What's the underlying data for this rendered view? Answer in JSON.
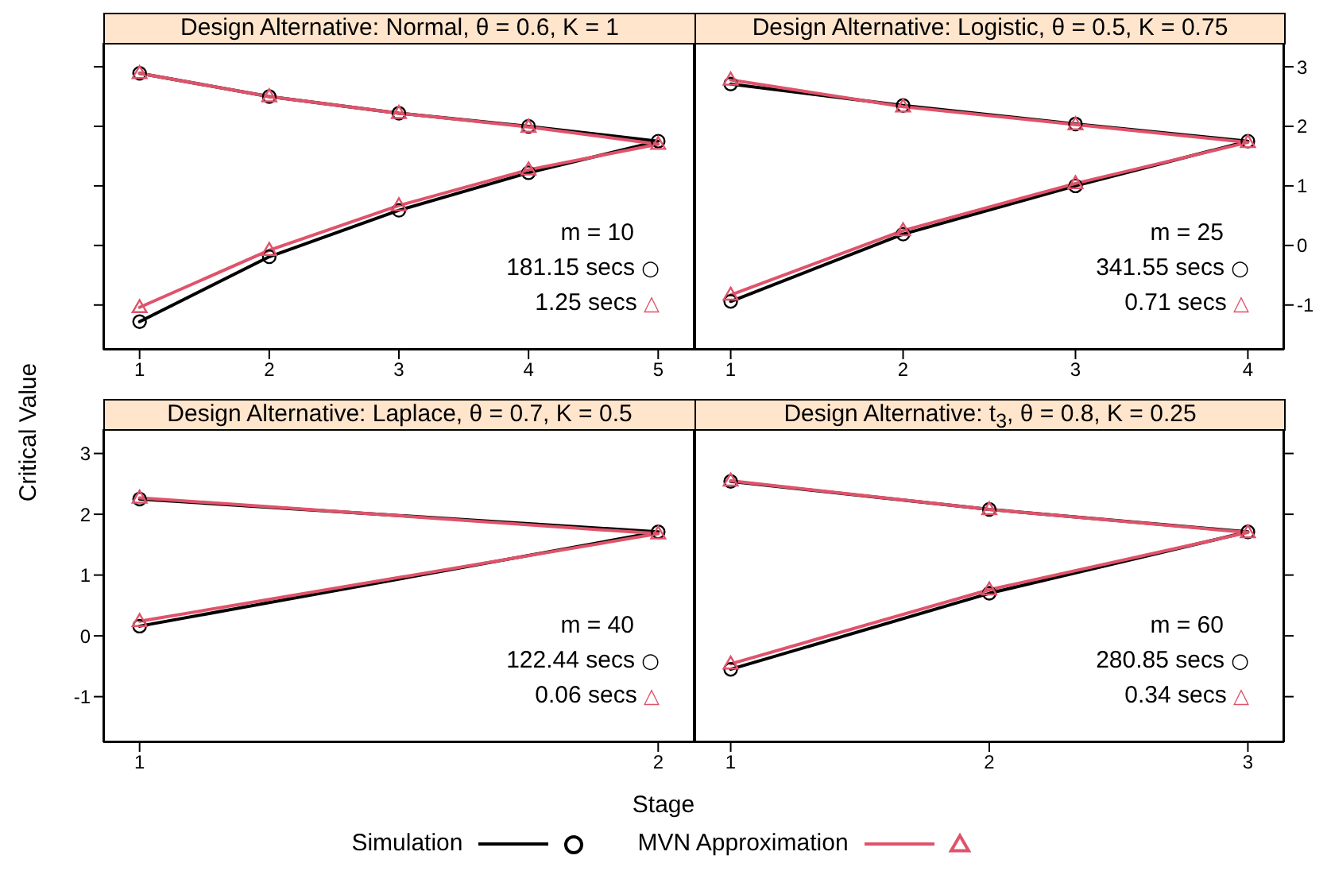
{
  "chart_data": [
    {
      "type": "line",
      "title": "Design Alternative: Normal, θ = 0.6, K = 1",
      "xlim": [
        0.72,
        5.28
      ],
      "xticks": [
        1,
        2,
        3,
        4,
        5
      ],
      "ylim": [
        -1.75,
        3.4
      ],
      "yticks": [
        -1,
        0,
        1,
        2,
        3
      ],
      "tick_labels": "x",
      "annotations": [
        "m = 10",
        "181.15 secs ○",
        "1.25 secs △"
      ],
      "series": [
        {
          "color": "#000000",
          "marker": "circle",
          "x": [
            1,
            2,
            3,
            4,
            5,
            4,
            3,
            2,
            1
          ],
          "values": [
            2.89,
            2.5,
            2.22,
            2.0,
            1.75,
            1.22,
            0.59,
            -0.19,
            -1.28
          ]
        },
        {
          "color": "#df536b",
          "marker": "triangle",
          "x": [
            1,
            2,
            3,
            4,
            5,
            4,
            3,
            2,
            1
          ],
          "values": [
            2.89,
            2.5,
            2.22,
            1.99,
            1.7,
            1.27,
            0.67,
            -0.08,
            -1.04
          ]
        }
      ]
    },
    {
      "type": "line",
      "title": "Design Alternative: Logistic, θ = 0.5, K = 0.75",
      "xlim": [
        0.79,
        4.21
      ],
      "xticks": [
        1,
        2,
        3,
        4
      ],
      "ylim": [
        -1.75,
        3.4
      ],
      "yticks": [
        -1,
        0,
        1,
        2,
        3
      ],
      "annotations": [
        "m = 25",
        "341.55 secs ○",
        "0.71 secs △"
      ],
      "series": [
        {
          "color": "#000000",
          "marker": "circle",
          "x": [
            1,
            2,
            3,
            4,
            3,
            2,
            1
          ],
          "values": [
            2.71,
            2.35,
            2.04,
            1.75,
            1.0,
            0.19,
            -0.94
          ]
        },
        {
          "color": "#df536b",
          "marker": "triangle",
          "x": [
            1,
            2,
            3,
            4,
            3,
            2,
            1
          ],
          "values": [
            2.78,
            2.33,
            2.03,
            1.73,
            1.04,
            0.25,
            -0.83
          ]
        }
      ]
    },
    {
      "type": "line",
      "title": "Design Alternative: Laplace, θ = 0.7, K = 0.5",
      "xlim": [
        0.93,
        2.07
      ],
      "xticks": [
        1,
        2
      ],
      "ylim": [
        -1.75,
        3.4
      ],
      "yticks": [
        -1,
        0,
        1,
        2,
        3
      ],
      "ylabel": "Critical Value",
      "annotations": [
        "m = 40",
        "122.44 secs ○",
        "0.06 secs △"
      ],
      "series": [
        {
          "color": "#000000",
          "marker": "circle",
          "x": [
            1,
            2,
            1
          ],
          "values": [
            2.25,
            1.71,
            0.16
          ]
        },
        {
          "color": "#df536b",
          "marker": "triangle",
          "x": [
            1,
            2,
            1
          ],
          "values": [
            2.27,
            1.68,
            0.24
          ]
        }
      ]
    },
    {
      "type": "line",
      "title": "Design Alternative: t$_{3}$, θ = 0.8, K = 0.25",
      "xlim": [
        0.86,
        3.14
      ],
      "xticks": [
        1,
        2,
        3
      ],
      "ylim": [
        -1.75,
        3.4
      ],
      "yticks": [
        -1,
        0,
        1,
        2,
        3
      ],
      "tick_labels": "x",
      "xlabel": "Stage",
      "legend": "bottom",
      "annotations": [
        "m = 60",
        "280.85 secs ○",
        "0.34 secs △"
      ],
      "series": [
        {
          "name": "Simulation",
          "color": "#000000",
          "marker": "circle",
          "x": [
            1,
            2,
            3,
            2,
            1
          ],
          "values": [
            2.54,
            2.08,
            1.71,
            0.7,
            -0.55
          ]
        },
        {
          "name": "MVN Approximation",
          "color": "#df536b",
          "marker": "triangle",
          "x": [
            1,
            2,
            3,
            2,
            1
          ],
          "values": [
            2.55,
            2.08,
            1.7,
            0.76,
            -0.46
          ]
        }
      ]
    }
  ]
}
